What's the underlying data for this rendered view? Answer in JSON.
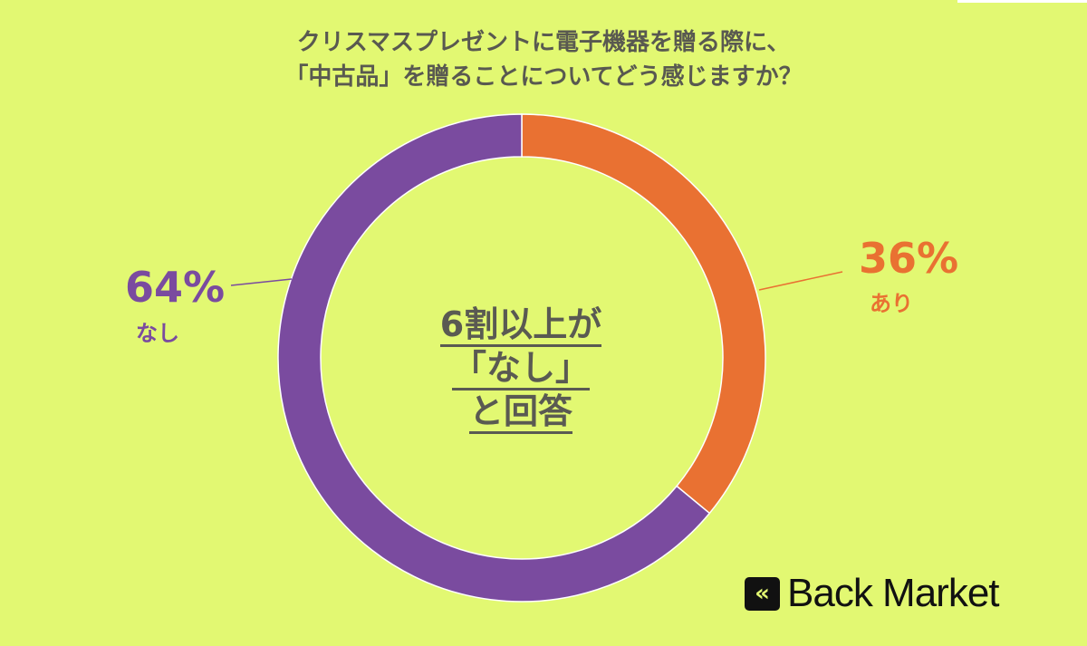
{
  "chart_data": {
    "type": "pie",
    "title_lines": [
      "クリスマスプレゼントに電子機器を贈る際に、",
      "「中古品」を贈ることについてどう感じますか？"
    ],
    "series": [
      {
        "name": "あり",
        "value": 36,
        "label": "36%",
        "color": "#e97132"
      },
      {
        "name": "なし",
        "value": 64,
        "label": "64%",
        "color": "#7a4b9f"
      }
    ],
    "donut": true,
    "center_text": [
      "6割以上が",
      "「なし」",
      "と回答"
    ]
  },
  "brand": {
    "name": "Back Market",
    "icon": "double-chevron-left-icon"
  },
  "colors": {
    "background": "#e2f872",
    "text": "#5a5a52"
  }
}
